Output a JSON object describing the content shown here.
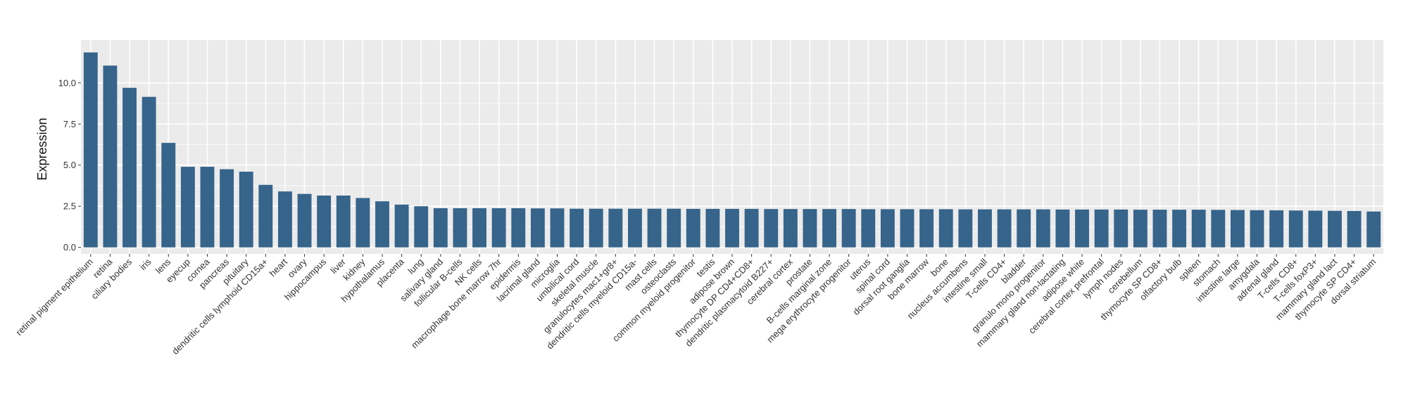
{
  "chart_data": {
    "type": "bar",
    "title": "",
    "xlabel": "",
    "ylabel": "Expression",
    "ylim": [
      -0.4,
      12.6
    ],
    "yticks": [
      0.0,
      2.5,
      5.0,
      7.5,
      10.0
    ],
    "ytick_labels": [
      "0.0",
      "2.5",
      "5.0",
      "7.5",
      "10.0"
    ],
    "grid": true,
    "legend": "none",
    "colors": {
      "bar": "#36648b",
      "panel": "#ebebeb",
      "grid": "#ffffff"
    },
    "categories": [
      "retinal pigment epithelium",
      "retina",
      "ciliary bodies",
      "iris",
      "lens",
      "eyecup",
      "cornea",
      "pancreas",
      "pituitary",
      "dendritic cells lymphoid CD15a+",
      "heart",
      "ovary",
      "hippocampus",
      "liver",
      "kidney",
      "hypothalamus",
      "placenta",
      "lung",
      "salivary gland",
      "follicular B-cells",
      "NK cells",
      "macrophage bone marrow 7hr",
      "epidermis",
      "lacrimal gland",
      "microglia",
      "umbilical cord",
      "skeletal muscle",
      "granulocytes mac1+gr8+",
      "dendritic cells myeloid CD15a-",
      "mast cells",
      "osteoclasts",
      "common myeloid progenitor",
      "testis",
      "adipose brown",
      "thymocyte DP CD4+CD8+",
      "dendritic plasmacytoid B227+",
      "cerebral cortex",
      "prostate",
      "B-cells marginal zone",
      "mega erythrocyte progenitor",
      "uterus",
      "spinal cord",
      "dorsal root ganglia",
      "bone marrow",
      "bone",
      "nucleus accumbens",
      "intestine small",
      "T-cells CD4+",
      "bladder",
      "granulo mono progenitor",
      "mammary gland non-lactating",
      "adipose white",
      "cerebral cortex prefrontal",
      "lymph nodes",
      "cerebellum",
      "thymocyte SP CD8+",
      "olfactory bulb",
      "spleen",
      "stomach",
      "intestine large",
      "amygdala",
      "adrenal gland",
      "T-cells CD8+",
      "T-cells foxP3+",
      "mammary gland lact",
      "thymocyte SP CD4+",
      "dorsal striatum"
    ],
    "values": [
      11.85,
      11.05,
      9.7,
      9.15,
      6.35,
      4.9,
      4.9,
      4.75,
      4.6,
      3.8,
      3.4,
      3.25,
      3.15,
      3.15,
      3.0,
      2.8,
      2.6,
      2.5,
      2.38,
      2.38,
      2.38,
      2.38,
      2.38,
      2.37,
      2.37,
      2.35,
      2.35,
      2.35,
      2.35,
      2.35,
      2.35,
      2.34,
      2.34,
      2.34,
      2.34,
      2.33,
      2.33,
      2.33,
      2.33,
      2.33,
      2.32,
      2.32,
      2.32,
      2.32,
      2.32,
      2.31,
      2.31,
      2.31,
      2.31,
      2.31,
      2.3,
      2.3,
      2.3,
      2.3,
      2.29,
      2.29,
      2.29,
      2.29,
      2.28,
      2.27,
      2.26,
      2.25,
      2.24,
      2.23,
      2.22,
      2.21,
      2.18
    ]
  }
}
